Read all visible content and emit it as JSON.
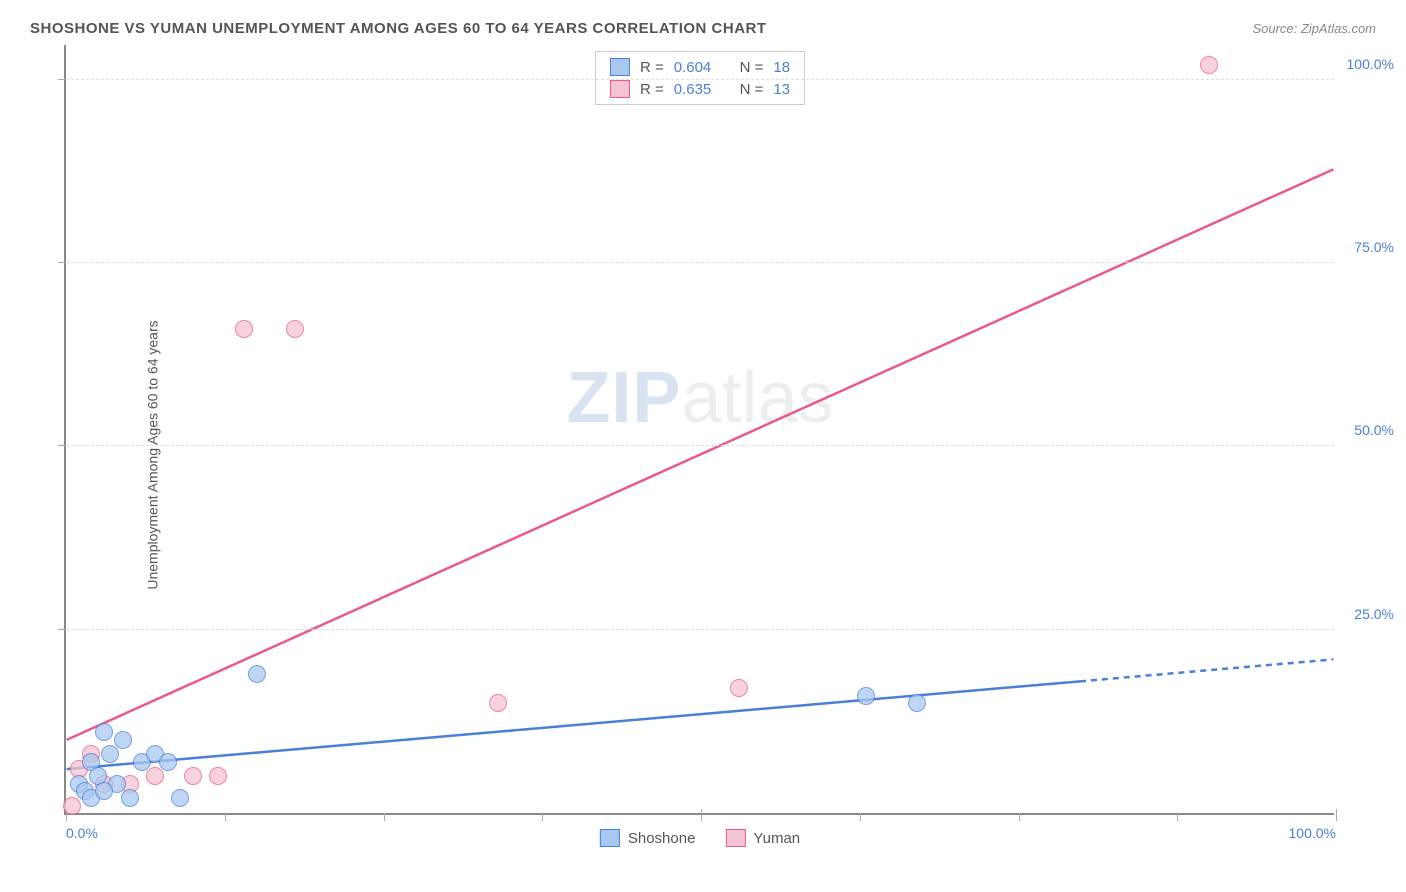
{
  "header": {
    "title": "SHOSHONE VS YUMAN UNEMPLOYMENT AMONG AGES 60 TO 64 YEARS CORRELATION CHART",
    "source": "Source: ZipAtlas.com"
  },
  "y_axis_label": "Unemployment Among Ages 60 to 64 years",
  "watermark": {
    "strong": "ZIP",
    "light": "atlas"
  },
  "chart": {
    "type": "scatter",
    "xlim": [
      0,
      100
    ],
    "ylim": [
      0,
      105
    ],
    "x_ticks_major": [
      0,
      50,
      100
    ],
    "x_ticks_minor": [
      12.5,
      25,
      37.5,
      62.5,
      75,
      87.5
    ],
    "y_ticks": [
      25,
      50,
      75,
      100
    ],
    "x_tick_labels": {
      "0": "0.0%",
      "100": "100.0%"
    },
    "y_tick_labels": {
      "25": "25.0%",
      "50": "50.0%",
      "75": "75.0%",
      "100": "100.0%"
    },
    "background_color": "#ffffff",
    "grid_color": "#dddddd",
    "axis_color": "#888888",
    "tick_label_color": "#4a7fd8"
  },
  "series_a": {
    "name": "Shoshone",
    "color_fill": "#a9c8ef",
    "color_stroke": "#4a7fd8",
    "R": "0.604",
    "N": "18",
    "trend": {
      "x1": 0,
      "y1": 6,
      "x2": 80,
      "y2": 18,
      "x2_dash": 100,
      "y2_dash": 21,
      "width": 2.5,
      "dash": "6 5"
    },
    "points": [
      {
        "x": 1,
        "y": 4
      },
      {
        "x": 1.5,
        "y": 3
      },
      {
        "x": 2,
        "y": 7
      },
      {
        "x": 2.5,
        "y": 5
      },
      {
        "x": 3,
        "y": 11
      },
      {
        "x": 3.5,
        "y": 8
      },
      {
        "x": 4,
        "y": 4
      },
      {
        "x": 4.5,
        "y": 10
      },
      {
        "x": 5,
        "y": 2
      },
      {
        "x": 6,
        "y": 7
      },
      {
        "x": 7,
        "y": 8
      },
      {
        "x": 8,
        "y": 7
      },
      {
        "x": 9,
        "y": 2
      },
      {
        "x": 15,
        "y": 19
      },
      {
        "x": 63,
        "y": 16
      },
      {
        "x": 67,
        "y": 15
      },
      {
        "x": 2,
        "y": 2
      },
      {
        "x": 3,
        "y": 3
      }
    ]
  },
  "series_b": {
    "name": "Yuman",
    "color_fill": "#f5c4d2",
    "color_stroke": "#e85a8a",
    "R": "0.635",
    "N": "13",
    "trend": {
      "x1": 0,
      "y1": 10,
      "x2": 100,
      "y2": 88,
      "width": 2.5
    },
    "points": [
      {
        "x": 0.5,
        "y": 1
      },
      {
        "x": 1,
        "y": 6
      },
      {
        "x": 2,
        "y": 8
      },
      {
        "x": 3,
        "y": 4
      },
      {
        "x": 5,
        "y": 4
      },
      {
        "x": 7,
        "y": 5
      },
      {
        "x": 10,
        "y": 5
      },
      {
        "x": 12,
        "y": 5
      },
      {
        "x": 14,
        "y": 66
      },
      {
        "x": 18,
        "y": 66
      },
      {
        "x": 34,
        "y": 15
      },
      {
        "x": 53,
        "y": 17
      },
      {
        "x": 90,
        "y": 102
      }
    ]
  },
  "legend_top": {
    "r_label": "R =",
    "n_label": "N ="
  },
  "legend_bottom": {
    "a": "Shoshone",
    "b": "Yuman"
  }
}
